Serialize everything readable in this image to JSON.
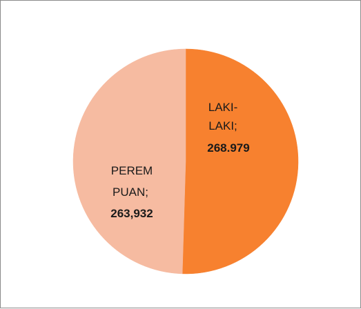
{
  "chart_data": {
    "type": "pie",
    "slices": [
      {
        "label_lines": [
          "LAKI-",
          "LAKI;"
        ],
        "value_text": "268.979",
        "value": 268979,
        "color": "#f7812f"
      },
      {
        "label_lines": [
          "PEREM",
          "PUAN;"
        ],
        "value_text": "263,932",
        "value": 263932,
        "color": "#f6bba1"
      }
    ],
    "start_angle_deg": 0,
    "direction": "clockwise"
  }
}
